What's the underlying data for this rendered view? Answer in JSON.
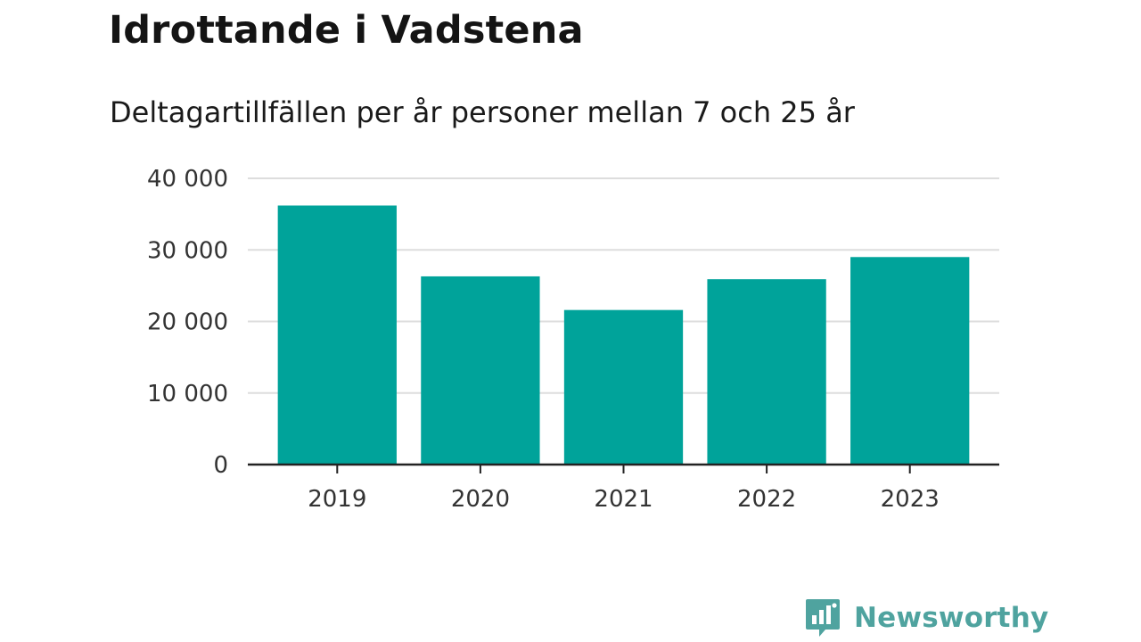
{
  "chart_data": {
    "type": "bar",
    "title": "Idrottande i Vadstena",
    "subtitle": "Deltagartillfällen per år personer mellan 7 och 25 år",
    "categories": [
      "2019",
      "2020",
      "2021",
      "2022",
      "2023"
    ],
    "values": [
      36200,
      26300,
      21600,
      25900,
      29000
    ],
    "xlabel": "",
    "ylabel": "",
    "ylim": [
      0,
      40000
    ],
    "y_ticks": [
      0,
      10000,
      20000,
      30000,
      40000
    ],
    "y_tick_labels": [
      "0",
      "10 000",
      "20 000",
      "30 000",
      "40 000"
    ],
    "grid": true,
    "legend": "none",
    "bar_color": "#00a39a",
    "grid_color": "#dddddd",
    "axis_color": "#222222"
  },
  "branding": {
    "logo_text": "Newsworthy",
    "logo_color": "#4fa39f",
    "logo_icon": "bar-chart-speech-bubble-icon"
  }
}
